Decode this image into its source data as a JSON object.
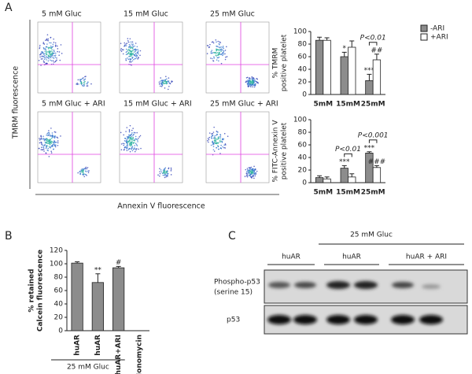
{
  "panel_labels": [
    "A",
    "B",
    "C"
  ],
  "flow": {
    "titles": [
      "5 mM Gluc",
      "15 mM Gluc",
      "25 mM Gluc",
      "5 mM Gluc + ARI",
      "15 mM Gluc + ARI",
      "25 mM Gluc + ARI"
    ],
    "y_label": "TMRM fluorescence",
    "x_label": "Annexin V fluorescence"
  },
  "chart_data": [
    {
      "type": "bar",
      "y_label": [
        "% TMRM",
        "positive platelet"
      ],
      "categories": [
        "5mM",
        "15mM",
        "25mM"
      ],
      "ylim": [
        0,
        100
      ],
      "yticks": [
        0,
        20,
        40,
        60,
        80,
        100
      ],
      "legend": true,
      "series": [
        {
          "name": "-ARI",
          "color": "#8c8c8c",
          "values": [
            86,
            60,
            22
          ],
          "errors": [
            5,
            7,
            10
          ],
          "stars": [
            null,
            "*",
            "***"
          ]
        },
        {
          "name": "+ARI",
          "color": "#ffffff",
          "values": [
            86,
            75,
            55
          ],
          "errors": [
            4,
            10,
            9
          ],
          "stars": [
            null,
            null,
            "##"
          ]
        }
      ],
      "brackets": [
        null,
        null,
        "P<0.01"
      ]
    },
    {
      "type": "bar",
      "y_label": [
        "% FITC-Annexin V",
        "positive platelet"
      ],
      "categories": [
        "5mM",
        "15mM",
        "25mM"
      ],
      "ylim": [
        0,
        100
      ],
      "yticks": [
        0,
        20,
        40,
        60,
        80,
        100
      ],
      "legend": false,
      "series": [
        {
          "name": "-ARI",
          "color": "#8c8c8c",
          "values": [
            8,
            23,
            47
          ],
          "errors": [
            3,
            4,
            2
          ],
          "stars": [
            null,
            "***",
            "***"
          ]
        },
        {
          "name": "+ARI",
          "color": "#ffffff",
          "values": [
            6,
            9,
            24
          ],
          "errors": [
            3,
            5,
            3
          ],
          "stars": [
            null,
            null,
            "###"
          ]
        }
      ],
      "brackets": [
        null,
        "P<0.01",
        "P<0.001"
      ]
    },
    {
      "type": "bar",
      "y_label": [
        "% retained",
        "Calcein fluorescence"
      ],
      "categories": [
        "huAR",
        "huAR",
        "huAR+ARI",
        "Ionomycin"
      ],
      "ylim": [
        0,
        120
      ],
      "yticks": [
        0,
        20,
        40,
        60,
        80,
        100,
        120
      ],
      "color": "#8c8c8c",
      "values": [
        101,
        72,
        94,
        0
      ],
      "errors": [
        2,
        13,
        2,
        null
      ],
      "stars": [
        null,
        "**",
        "#",
        null
      ],
      "group_label": "25 mM Gluc"
    }
  ],
  "blot": {
    "header": "25 mM Gluc",
    "groups": [
      "huAR",
      "huAR",
      "huAR + ARI"
    ],
    "row_labels": [
      [
        "Phospho-p53",
        "(serine 15)"
      ],
      [
        "p53"
      ]
    ]
  }
}
